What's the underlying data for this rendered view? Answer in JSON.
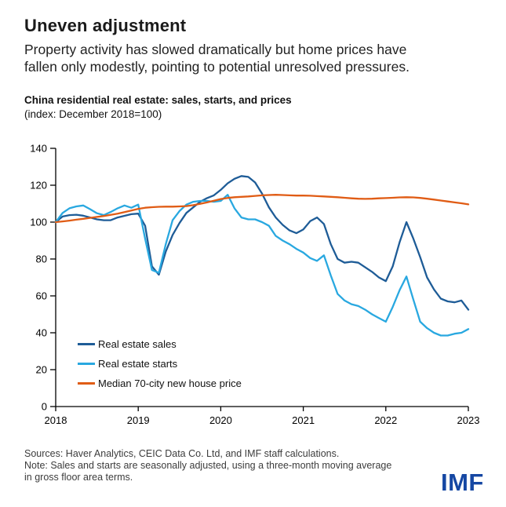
{
  "header": {
    "title": "Uneven adjustment",
    "subtitle_lines": [
      "Property activity has slowed dramatically but home prices have",
      "fallen only modestly, pointing to potential unresolved pressures."
    ]
  },
  "chart": {
    "title": "China residential real estate: sales, starts, and prices",
    "index_label": "(index: December 2018=100)"
  },
  "chart_data": {
    "type": "line",
    "title": "China residential real estate: sales, starts, and prices",
    "subtitle": "(index: December 2018=100)",
    "x_unit": "months since December 2018 (monthly points)",
    "x_tick_labels": [
      "2018",
      "2019",
      "2020",
      "2021",
      "2022",
      "2023"
    ],
    "x_tick_positions": [
      0,
      12,
      24,
      36,
      48,
      60
    ],
    "xlim": [
      0,
      60
    ],
    "ylim": [
      0,
      140
    ],
    "y_ticks": [
      0,
      20,
      40,
      60,
      80,
      100,
      120,
      140
    ],
    "grid": false,
    "legend_position": "inside-lower-left",
    "axis_color": "#000000",
    "series": [
      {
        "name": "Real estate sales",
        "color": "#1e5c97",
        "values": [
          100,
          103,
          103.8,
          104,
          103.5,
          102.5,
          101.5,
          101,
          101,
          102.5,
          103.4,
          104.3,
          104.6,
          98,
          76,
          71.5,
          84,
          93,
          99.5,
          105,
          108,
          111,
          113,
          114.5,
          117.5,
          121,
          123.5,
          125,
          124.5,
          121.5,
          115.5,
          108,
          102.5,
          98.5,
          95.5,
          94,
          96,
          100.5,
          102.5,
          99,
          88,
          80,
          78,
          78.5,
          78,
          75.5,
          73,
          70,
          68,
          76,
          89,
          100,
          91,
          81,
          70,
          63.5,
          58.5,
          57,
          56.5,
          57.5,
          52.5
        ]
      },
      {
        "name": "Real estate starts",
        "color": "#29a8e0",
        "values": [
          100,
          105,
          107.5,
          108.5,
          109,
          107,
          104.8,
          103.8,
          105.5,
          107.5,
          109,
          107.8,
          109.5,
          91,
          74,
          72.5,
          88,
          101,
          106,
          109.5,
          111,
          111.5,
          111.5,
          111,
          111.5,
          114.8,
          107.5,
          102.5,
          101.5,
          101.5,
          100,
          98,
          92.5,
          90,
          88,
          85.5,
          83.5,
          80.5,
          79,
          82,
          71,
          61,
          57.5,
          55.5,
          54.5,
          52.5,
          50,
          48,
          46,
          54,
          63,
          70.5,
          58,
          46,
          42.5,
          40,
          38.5,
          38.5,
          39.5,
          40,
          42
        ]
      },
      {
        "name": "Median 70-city new house price",
        "color": "#e05c15",
        "values": [
          100,
          100.4,
          100.8,
          101.3,
          101.8,
          102.3,
          102.8,
          103.3,
          103.9,
          104.6,
          105.4,
          106.3,
          107.2,
          107.8,
          108.1,
          108.3,
          108.4,
          108.4,
          108.5,
          108.7,
          109.2,
          109.9,
          110.7,
          111.6,
          112.5,
          113.1,
          113.5,
          113.7,
          113.9,
          114.2,
          114.5,
          114.7,
          114.8,
          114.7,
          114.5,
          114.4,
          114.4,
          114.3,
          114.1,
          113.9,
          113.7,
          113.5,
          113.2,
          112.9,
          112.7,
          112.6,
          112.7,
          112.9,
          113,
          113.2,
          113.4,
          113.5,
          113.4,
          113.1,
          112.7,
          112.2,
          111.7,
          111.2,
          110.7,
          110.2,
          109.6
        ]
      }
    ]
  },
  "footer": {
    "sources": "Sources: Haver Analytics, CEIC Data Co. Ltd, and IMF staff calculations.",
    "note_lines": [
      "Note: Sales and starts are seasonally adjusted, using a three-month moving average",
      "in gross floor area terms."
    ],
    "logo_text": "IMF"
  }
}
